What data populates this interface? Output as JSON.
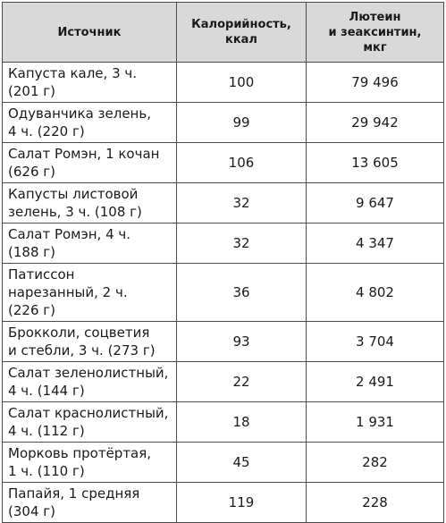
{
  "headers": {
    "source": "Источник",
    "calories_line1": "Калорийность,",
    "calories_line2": "ккал",
    "lutein_line1": "Лютеин",
    "lutein_line2": "и зеаксинтин,",
    "lutein_line3": "мкг"
  },
  "rows": [
    {
      "source_line1": "Капуста кале, 3 ч.",
      "source_line2": "(201 г)",
      "calories": "100",
      "lutein": "79 496"
    },
    {
      "source_line1": "Одуванчика зелень,",
      "source_line2": "4 ч. (220 г)",
      "calories": "99",
      "lutein": "29 942"
    },
    {
      "source_line1": "Салат Ромэн, 1 кочан",
      "source_line2": "(626 г)",
      "calories": "106",
      "lutein": "13 605"
    },
    {
      "source_line1": "Капусты листовой",
      "source_line2": "зелень, 3 ч. (108 г)",
      "calories": "32",
      "lutein": "9 647"
    },
    {
      "source_line1": "Салат Ромэн, 4 ч.",
      "source_line2": "(188 г)",
      "calories": "32",
      "lutein": "4 347"
    },
    {
      "source_line1": "Патиссон",
      "source_line2": "нарезанный, 2 ч.",
      "source_line3": "(226 г)",
      "calories": "36",
      "lutein": "4 802"
    },
    {
      "source_line1": "Брокколи, соцветия",
      "source_line2": "и стебли, 3 ч. (273 г)",
      "calories": "93",
      "lutein": "3 704"
    },
    {
      "source_line1": "Салат зеленолистный,",
      "source_line2": "4 ч. (144 г)",
      "calories": "22",
      "lutein": "2 491"
    },
    {
      "source_line1": "Салат краснолистный,",
      "source_line2": "4 ч. (112 г)",
      "calories": "18",
      "lutein": "1 931"
    },
    {
      "source_line1": "Морковь протёртая,",
      "source_line2": "1 ч. (110 г)",
      "calories": "45",
      "lutein": "282"
    },
    {
      "source_line1": "Папайя, 1 средняя",
      "source_line2": "(304 г)",
      "calories": "119",
      "lutein": "228"
    }
  ]
}
